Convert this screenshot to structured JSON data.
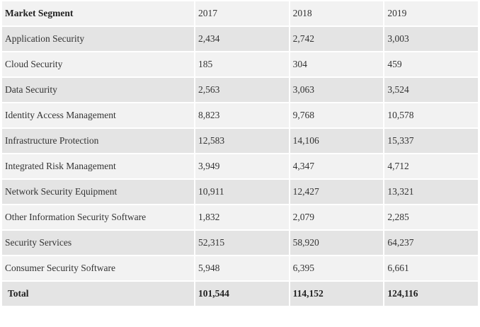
{
  "table": {
    "header": [
      "Market Segment",
      "2017",
      "2018",
      "2019"
    ],
    "rows": [
      [
        "Application Security",
        "2,434",
        "2,742",
        "3,003"
      ],
      [
        "Cloud Security",
        "185",
        "304",
        "459"
      ],
      [
        "Data Security",
        "2,563",
        "3,063",
        "3,524"
      ],
      [
        "Identity Access Management",
        "8,823",
        "9,768",
        "10,578"
      ],
      [
        "Infrastructure Protection",
        "12,583",
        "14,106",
        "15,337"
      ],
      [
        "Integrated Risk Management",
        "3,949",
        "4,347",
        "4,712"
      ],
      [
        "Network Security Equipment",
        "10,911",
        "12,427",
        "13,321"
      ],
      [
        "Other Information Security Software",
        "1,832",
        "2,079",
        "2,285"
      ],
      [
        "Security Services",
        "52,315",
        "58,920",
        "64,237"
      ],
      [
        "Consumer Security Software",
        "5,948",
        "6,395",
        "6,661"
      ]
    ],
    "total": [
      "Total",
      "101,544",
      "114,152",
      "124,116"
    ]
  }
}
